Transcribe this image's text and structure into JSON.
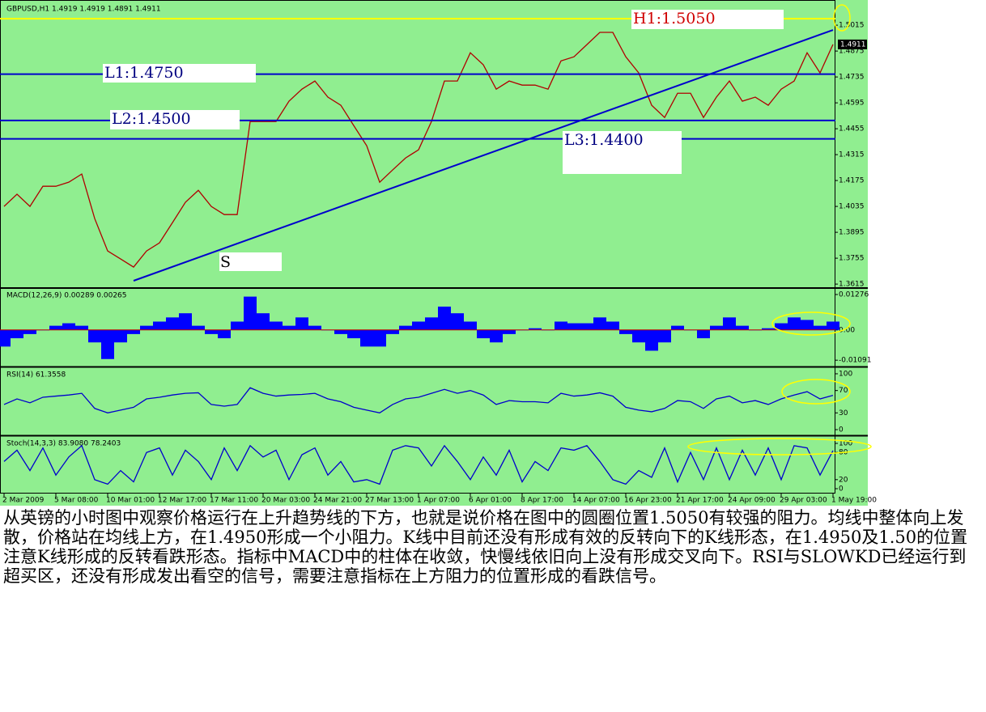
{
  "chart_data": [
    {
      "type": "line",
      "title": "GBPUSD,H1  1.4919 1.4919 1.4891 1.4911",
      "color": "#b00000",
      "categories": [
        "2 Mar 2009",
        null,
        null,
        null,
        "5 Mar 08:00",
        null,
        null,
        null,
        "10 Mar 01:00",
        null,
        null,
        null,
        "12 Mar 17:00",
        null,
        null,
        null,
        "17 Mar 11:00",
        null,
        null,
        null,
        "20 Mar 03:00",
        null,
        null,
        null,
        "24 Mar 21:00",
        null,
        null,
        null,
        "27 Mar 13:00",
        null,
        null,
        null,
        "1 Apr 07:00",
        null,
        null,
        null,
        "6 Apr 01:00",
        null,
        null,
        null,
        "8 Apr 17:00",
        null,
        null,
        null,
        "14 Apr 07:00",
        null,
        null,
        null,
        "16 Apr 23:00",
        null,
        null,
        null,
        "21 Apr 17:00",
        null,
        null,
        null,
        "24 Apr 09:00",
        null,
        null,
        null,
        "29 Apr 03:00",
        null,
        null,
        null,
        "1 May 19:00"
      ],
      "values": [
        1.4035,
        1.4101,
        1.4035,
        1.4144,
        1.4144,
        1.4166,
        1.421,
        1.3969,
        1.3794,
        1.3751,
        1.3707,
        1.3794,
        1.3838,
        1.3947,
        1.4057,
        1.4122,
        1.4035,
        1.3991,
        1.3991,
        1.4494,
        1.4494,
        1.4494,
        1.4604,
        1.4669,
        1.4713,
        1.4626,
        1.4582,
        1.4472,
        1.4363,
        1.4166,
        1.4232,
        1.4297,
        1.4341,
        1.4494,
        1.4713,
        1.4713,
        1.4866,
        1.4801,
        1.4669,
        1.4713,
        1.4691,
        1.4691,
        1.4669,
        1.4822,
        1.4844,
        1.491,
        1.4976,
        1.4976,
        1.4844,
        1.4757,
        1.4582,
        1.4516,
        1.4647,
        1.4647,
        1.4516,
        1.4626,
        1.4713,
        1.4604,
        1.4626,
        1.4582,
        1.4669,
        1.4713,
        1.4866,
        1.4757,
        1.4911
      ],
      "ylim": [
        1.3598,
        1.5138
      ],
      "yticks": [
        1.3615,
        1.3755,
        1.3895,
        1.4035,
        1.4175,
        1.4315,
        1.4455,
        1.4595,
        1.4735,
        1.4875,
        1.5015
      ],
      "levels": [
        {
          "label": "H1:1.5050",
          "value": 1.505,
          "color": "#ffff00"
        },
        {
          "label": "L1:1.4750",
          "value": 1.475,
          "color": "#0000cc"
        },
        {
          "label": "L2:1.4500",
          "value": 1.45,
          "color": "#0000cc"
        },
        {
          "label": "L3:1.4400",
          "value": 1.44,
          "color": "#0000cc"
        }
      ],
      "trendline": {
        "label": "S",
        "x": [
          10,
          64
        ],
        "values": [
          1.3633,
          1.4989
        ],
        "color": "#0000cc"
      }
    },
    {
      "type": "bar",
      "title": "MACD(12,26,9) 0.00289 0.00265",
      "color": "#0000ff",
      "values": [
        -0.006,
        -0.003,
        -0.0015,
        0,
        0.0015,
        0.0024,
        0.0015,
        -0.0045,
        -0.0105,
        -0.0045,
        -0.0015,
        0.0015,
        0.003,
        0.0045,
        0.006,
        0.0015,
        -0.0015,
        -0.003,
        0.003,
        0.012,
        0.006,
        0.003,
        0.0015,
        0.0045,
        0.0015,
        0,
        -0.0015,
        -0.003,
        -0.006,
        -0.006,
        -0.0015,
        0.0015,
        0.003,
        0.0045,
        0.0084,
        0.006,
        0.003,
        -0.003,
        -0.0045,
        -0.0015,
        0,
        0.0006,
        0,
        0.003,
        0.0024,
        0.0024,
        0.0045,
        0.003,
        -0.0015,
        -0.0045,
        -0.0075,
        -0.0045,
        0.0015,
        0,
        -0.003,
        0.0015,
        0.0045,
        0.0015,
        0,
        0.0006,
        0.0024,
        0.0045,
        0.0036,
        0.0015,
        0.003
      ],
      "ylim": [
        -0.0129,
        0.0148
      ],
      "yticks": [
        0.01276,
        {
          "value": 0,
          "label": "0.00"
        },
        -0.01091
      ]
    },
    {
      "type": "line",
      "title": "RSI(14) 61.3558",
      "color": "#0000cc",
      "values": [
        45,
        55,
        48,
        58,
        60,
        62,
        65,
        38,
        30,
        35,
        40,
        55,
        58,
        62,
        65,
        66,
        45,
        42,
        45,
        75,
        65,
        60,
        62,
        63,
        65,
        55,
        50,
        40,
        35,
        30,
        45,
        55,
        58,
        65,
        72,
        65,
        70,
        62,
        45,
        52,
        50,
        50,
        48,
        65,
        60,
        62,
        66,
        60,
        40,
        35,
        32,
        38,
        52,
        50,
        38,
        55,
        60,
        48,
        52,
        45,
        55,
        62,
        68,
        55,
        61.36
      ],
      "ylim": [
        -8.7,
        110.1
      ],
      "yticks": [
        100,
        70,
        30,
        0
      ]
    },
    {
      "type": "line",
      "title": "Stoch(14,3,3) 83.9080 78.2403",
      "color": "#0000cc",
      "values": [
        60,
        85,
        40,
        90,
        30,
        70,
        95,
        20,
        10,
        40,
        15,
        80,
        90,
        30,
        85,
        60,
        20,
        90,
        40,
        95,
        70,
        85,
        20,
        75,
        90,
        30,
        60,
        15,
        20,
        10,
        85,
        95,
        90,
        50,
        95,
        60,
        20,
        70,
        30,
        85,
        15,
        60,
        40,
        90,
        85,
        95,
        60,
        20,
        10,
        40,
        25,
        90,
        15,
        80,
        20,
        90,
        20,
        85,
        30,
        90,
        20,
        95,
        90,
        30,
        84
      ],
      "ylim": [
        -10.7,
        114.3
      ],
      "yticks": [
        100,
        80,
        20,
        0
      ]
    }
  ],
  "description": "从英镑的小时图中观察价格运行在上升趋势线的下方，也就是说价格在图中的圆圈位置1.5050有较强的阻力。均线中整体向上发散，价格站在均线上方，在1.4950形成一个小阻力。K线中目前还没有形成有效的反转向下的K线形态，在1.4950及1.50的位置注意K线形成的反转看跌形态。指标中MACD中的柱体在收敛，快慢线依旧向上没有形成交叉向下。RSI与SLOWKD已经运行到超买区，还没有形成发出看空的信号，需要注意指标在上方阻力的位置形成的看跌信号。"
}
